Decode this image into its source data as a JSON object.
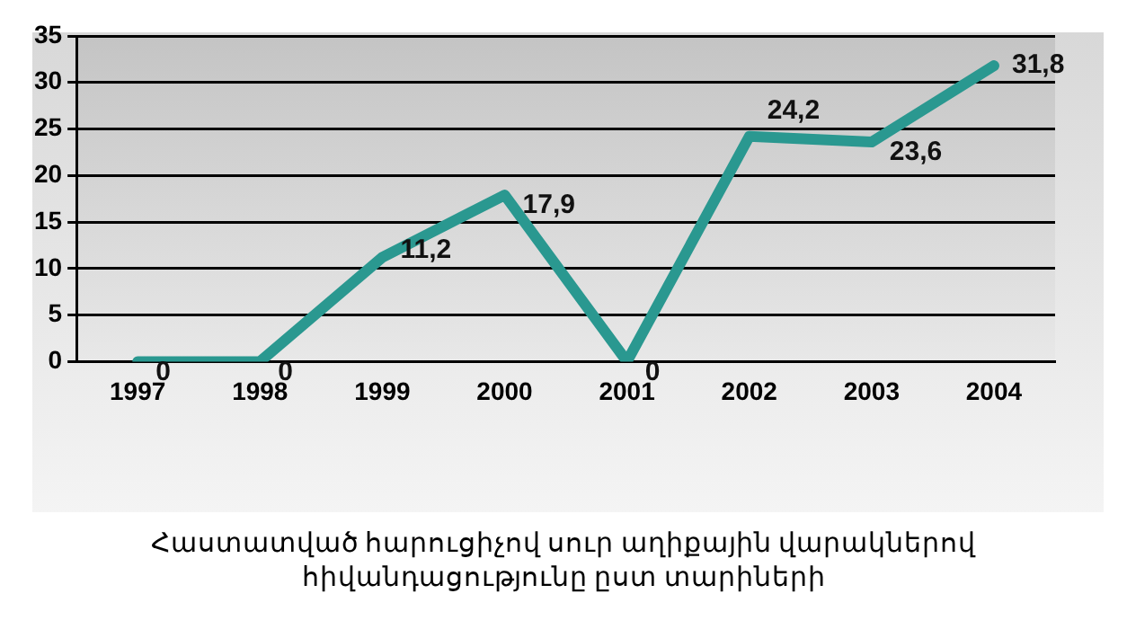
{
  "chart_data": {
    "type": "line",
    "categories": [
      "1997",
      "1998",
      "1999",
      "2000",
      "2001",
      "2002",
      "2003",
      "2004"
    ],
    "series": [
      {
        "color": "#2a9890",
        "values": [
          0,
          0,
          11.2,
          17.9,
          0,
          24.2,
          23.6,
          31.8
        ],
        "value_labels": [
          "0",
          "0",
          "11,2",
          "17,9",
          "0",
          "24,2",
          "23,6",
          "31,8"
        ]
      }
    ],
    "ylim": [
      0,
      35
    ],
    "yticks": [
      0,
      5,
      10,
      15,
      20,
      25,
      30,
      35
    ],
    "grid": "y",
    "legend": false,
    "marker": "none",
    "line_style": "solid",
    "annotations": [
      "Հաստատված հարուցիչով սուր աղիքային վարակներով հիվանդացությունը  ըստ տարիների"
    ]
  }
}
